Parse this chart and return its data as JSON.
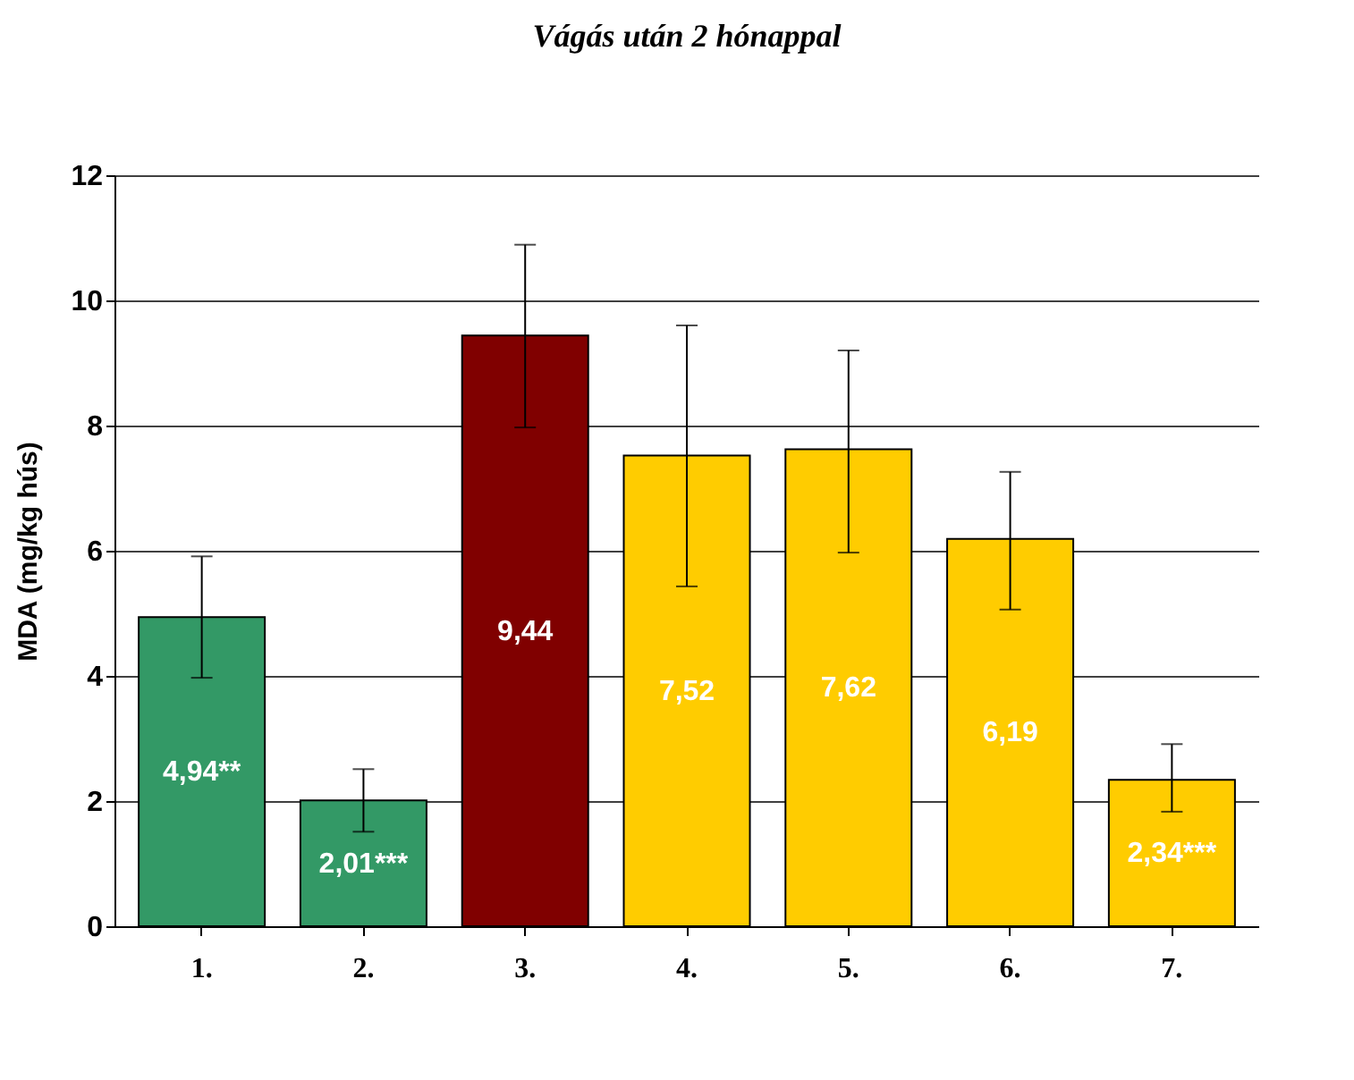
{
  "chart_data": {
    "type": "bar",
    "title": "Vágás után 2 hónappal",
    "ylabel": "MDA (mg/kg hús)",
    "categories": [
      "1.",
      "2.",
      "3.",
      "4.",
      "5.",
      "6.",
      "7."
    ],
    "values": [
      4.94,
      2.01,
      9.44,
      7.52,
      7.62,
      6.19,
      2.34
    ],
    "colors": [
      "#339966",
      "#339966",
      "#800000",
      "#ffcc00",
      "#ffcc00",
      "#ffcc00",
      "#ffcc00"
    ],
    "errors": [
      [
        3.97,
        5.91
      ],
      [
        1.51,
        2.51
      ],
      [
        7.97,
        10.89
      ],
      [
        5.43,
        9.6
      ],
      [
        5.97,
        9.2
      ],
      [
        5.06,
        7.26
      ],
      [
        1.83,
        2.91
      ]
    ],
    "value_labels": [
      "4,94**",
      "2,01***",
      "9,44",
      "7,52",
      "7,62",
      "6,19",
      "2,34***"
    ],
    "ylim": [
      0,
      12
    ],
    "yticks": [
      0,
      2,
      4,
      6,
      8,
      10,
      12
    ],
    "grid": "y"
  }
}
